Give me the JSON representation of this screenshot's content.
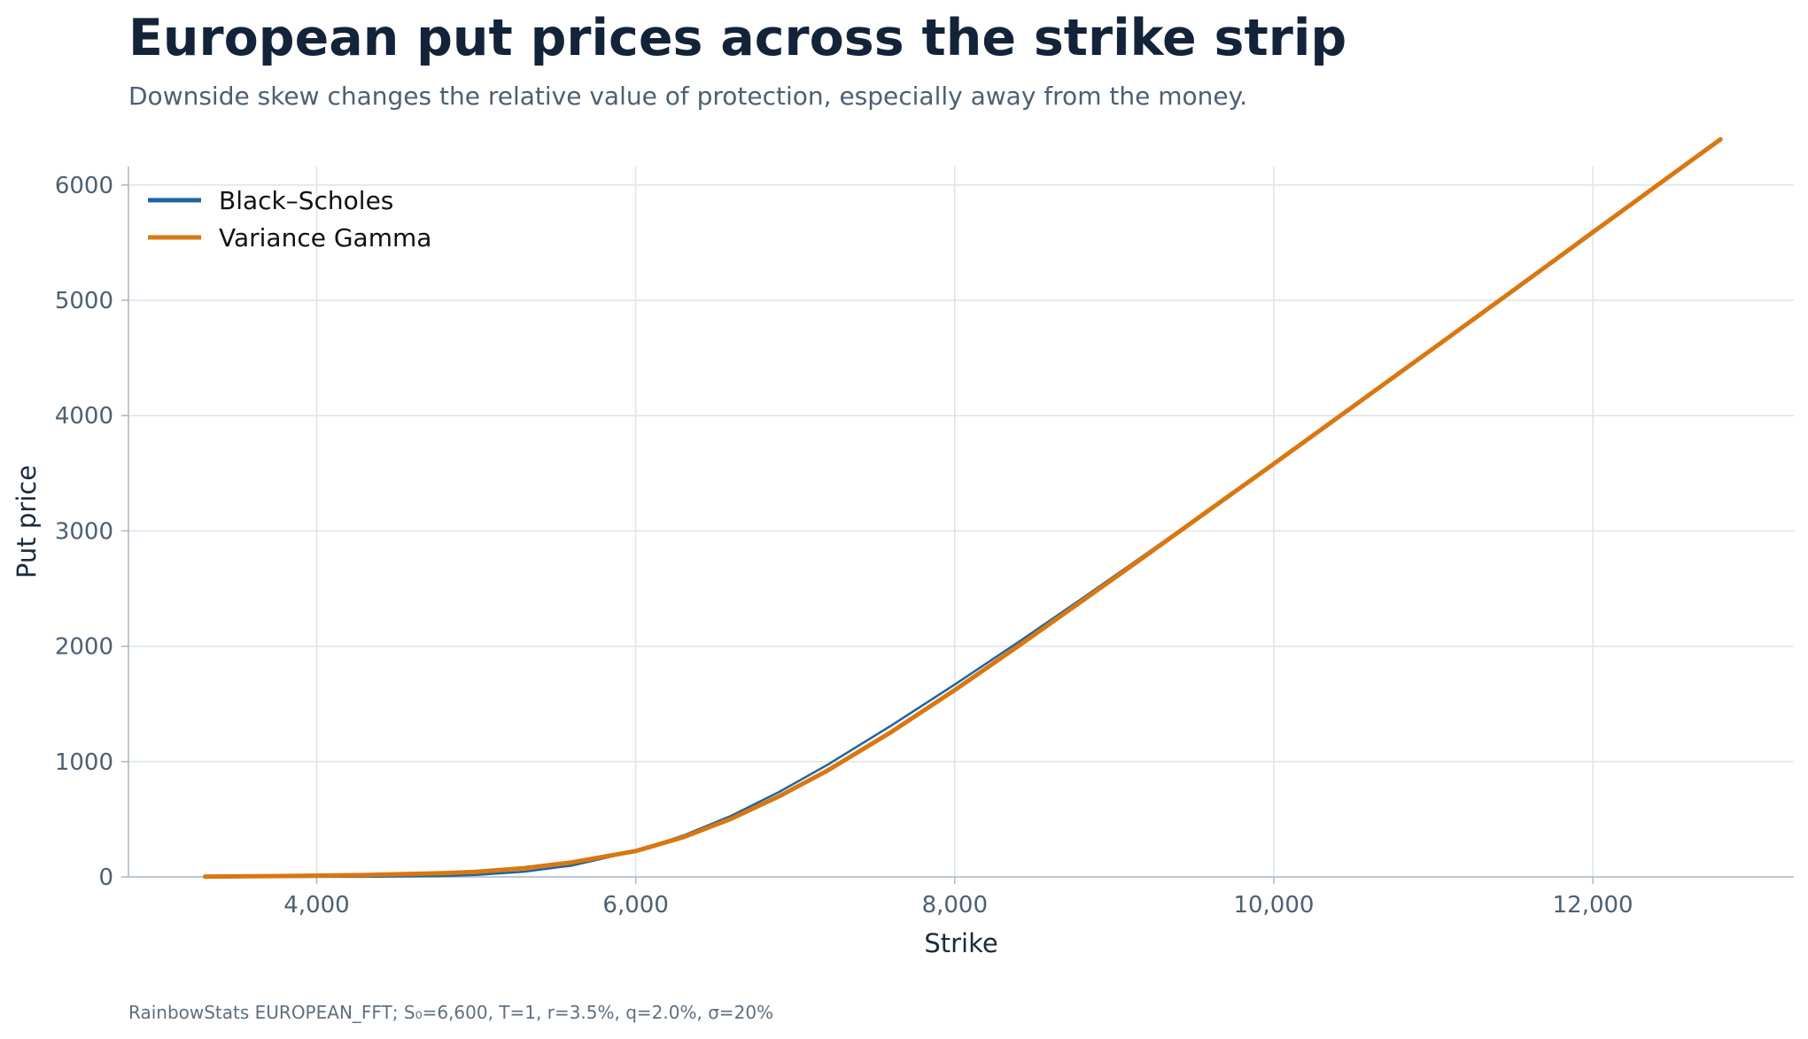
{
  "header": {
    "title": "European put prices across the strike strip",
    "subtitle": "Downside skew changes the relative value of protection, especially away from the money."
  },
  "footnote": "RainbowStats EUROPEAN_FFT; S₀=6,600, T=1, r=3.5%, q=2.0%, σ=20%",
  "colors": {
    "grid": "#dde3ea",
    "axis": "#a9b7c6",
    "black_scholes": "#1f64a0",
    "variance_gamma": "#d97710"
  },
  "chart_data": {
    "type": "line",
    "xlabel": "Strike",
    "ylabel": "Put price",
    "xlim": [
      2820,
      13260
    ],
    "ylim": [
      0,
      6160
    ],
    "xticks": [
      {
        "value": 4000,
        "label": "4,000"
      },
      {
        "value": 6000,
        "label": "6,000"
      },
      {
        "value": 8000,
        "label": "8,000"
      },
      {
        "value": 10000,
        "label": "10,000"
      },
      {
        "value": 12000,
        "label": "12,000"
      }
    ],
    "yticks": [
      {
        "value": 0,
        "label": "0"
      },
      {
        "value": 1000,
        "label": "1000"
      },
      {
        "value": 2000,
        "label": "2000"
      },
      {
        "value": 3000,
        "label": "3000"
      },
      {
        "value": 4000,
        "label": "4000"
      },
      {
        "value": 5000,
        "label": "5000"
      },
      {
        "value": 6000,
        "label": "6000"
      }
    ],
    "grid": true,
    "legend": "top-left",
    "x": [
      3300,
      3800,
      4300,
      4800,
      5000,
      5300,
      5600,
      6000,
      6300,
      6600,
      6900,
      7200,
      7600,
      8000,
      8400,
      8800,
      9200,
      9600,
      10000,
      10500,
      11000,
      11500,
      12000,
      12500,
      12800
    ],
    "series": [
      {
        "name": "Black–Scholes",
        "color": "#1f64a0",
        "values": [
          0,
          0,
          1,
          8,
          18,
          45,
          98,
          224,
          360,
          531,
          737,
          970,
          1311,
          1668,
          2037,
          2416,
          2802,
          3193,
          3588,
          4086,
          4586,
          5088,
          5590,
          6094,
          6396
        ]
      },
      {
        "name": "Variance Gamma",
        "color": "#d97710",
        "values": [
          3,
          8,
          16,
          32,
          44,
          76,
          126,
          224,
          345,
          505,
          700,
          920,
          1255,
          1620,
          2003,
          2395,
          2788,
          3186,
          3582,
          4082,
          4582,
          5085,
          5590,
          6094,
          6396
        ]
      }
    ]
  }
}
